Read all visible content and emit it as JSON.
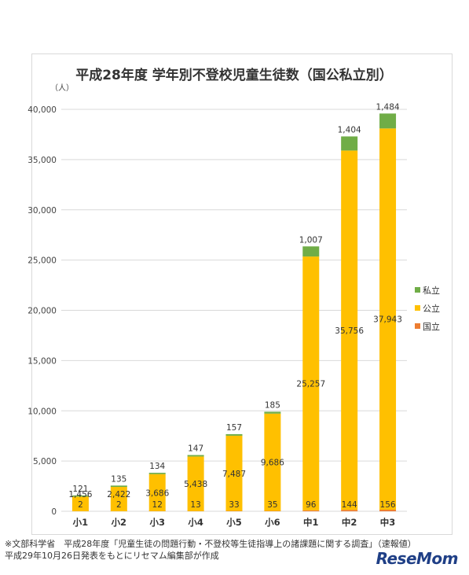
{
  "chart_data": {
    "type": "bar",
    "stacked": true,
    "title": "平成28年度 学年別不登校児童生徒数（国公私立別）",
    "ylabel": "（人）",
    "ylim": [
      0,
      40000
    ],
    "yticks": [
      "0",
      "5,000",
      "10,000",
      "15,000",
      "20,000",
      "25,000",
      "30,000",
      "35,000",
      "40,000"
    ],
    "grid": true,
    "legend_position": "right",
    "categories": [
      "小1",
      "小2",
      "小3",
      "小4",
      "小5",
      "小6",
      "中1",
      "中2",
      "中3"
    ],
    "series": [
      {
        "name": "国立",
        "color": "#ed7d31",
        "values": [
          2,
          2,
          12,
          13,
          33,
          35,
          96,
          144,
          156
        ],
        "labels": [
          "2",
          "2",
          "12",
          "13",
          "33",
          "35",
          "96",
          "144",
          "156"
        ]
      },
      {
        "name": "公立",
        "color": "#ffc000",
        "values": [
          1456,
          2422,
          3686,
          5438,
          7487,
          9686,
          25257,
          35756,
          37943
        ],
        "labels": [
          "1,456",
          "2,422",
          "3,686",
          "5,438",
          "7,487",
          "9,686",
          "25,257",
          "35,756",
          "37,943"
        ]
      },
      {
        "name": "私立",
        "color": "#70ad47",
        "values": [
          121,
          135,
          134,
          147,
          157,
          185,
          1007,
          1404,
          1484
        ],
        "labels": [
          "121",
          "135",
          "134",
          "147",
          "157",
          "185",
          "1,007",
          "1,404",
          "1,484"
        ]
      }
    ],
    "legend_order": [
      "私立",
      "公立",
      "国立"
    ]
  },
  "footnote": {
    "line1": "※文部科学省　平成28年度「児童生徒の問題行動・不登校等生徒指導上の諸課題に関する調査」（速報値）",
    "line2": "平成29年10月26日発表をもとにリセマム編集部が作成"
  },
  "logo": "ReseMom"
}
